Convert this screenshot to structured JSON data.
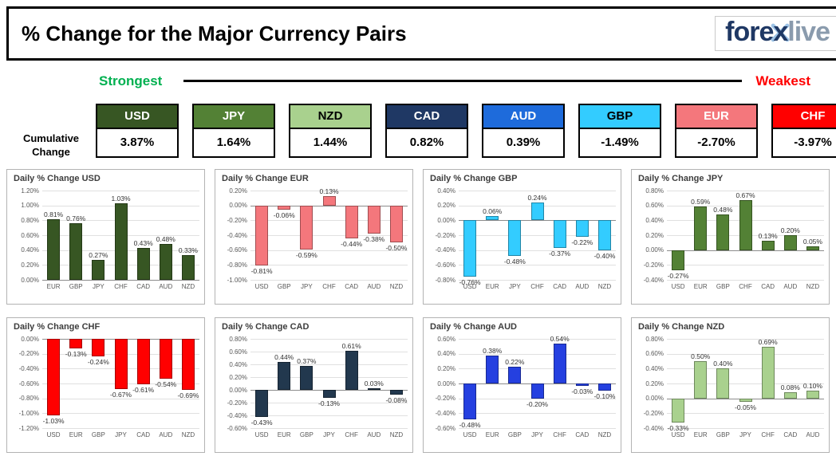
{
  "header": {
    "title": "% Change for the Major Currency Pairs",
    "logo": {
      "fore": "fore",
      "x": "x",
      "live": "live",
      "navy": "#1F3864",
      "gray": "#8A9BAD",
      "light_blue": "#9DC3E6"
    }
  },
  "scale": {
    "strongest": "Strongest",
    "weakest": "Weakest",
    "strongest_color": "#00B050",
    "weakest_color": "#FF0000"
  },
  "cumulative": {
    "label_line1": "Cumulative",
    "label_line2": "Change",
    "items": [
      {
        "code": "USD",
        "value": "3.87%",
        "color": "#375623",
        "text_color": "#FFFFFF"
      },
      {
        "code": "JPY",
        "value": "1.64%",
        "color": "#538135",
        "text_color": "#FFFFFF"
      },
      {
        "code": "NZD",
        "value": "1.44%",
        "color": "#A9D18E",
        "text_color": "#000000"
      },
      {
        "code": "CAD",
        "value": "0.82%",
        "color": "#1F3864",
        "text_color": "#FFFFFF"
      },
      {
        "code": "AUD",
        "value": "0.39%",
        "color": "#1E6BDB",
        "text_color": "#FFFFFF"
      },
      {
        "code": "GBP",
        "value": "-1.49%",
        "color": "#33CCFF",
        "text_color": "#000000"
      },
      {
        "code": "EUR",
        "value": "-2.70%",
        "color": "#F4777C",
        "text_color": "#FFFFFF"
      },
      {
        "code": "CHF",
        "value": "-3.97%",
        "color": "#FF0000",
        "text_color": "#FFFFFF"
      }
    ]
  },
  "chart_data": [
    {
      "id": "USD",
      "type": "bar",
      "title": "Daily % Change USD",
      "color": "#375623",
      "categories": [
        "EUR",
        "GBP",
        "JPY",
        "CHF",
        "CAD",
        "AUD",
        "NZD"
      ],
      "values": [
        0.81,
        0.76,
        0.27,
        1.03,
        0.43,
        0.48,
        0.33
      ],
      "labels": [
        "0.81%",
        "0.76%",
        "0.27%",
        "1.03%",
        "0.43%",
        "0.48%",
        "0.33%"
      ],
      "ylim": [
        0,
        1.2
      ],
      "ytick_step": 0.2,
      "grid": true,
      "legend": false,
      "yticks": [
        "1.20%",
        "1.00%",
        "0.80%",
        "0.60%",
        "0.40%",
        "0.20%",
        "0.00%"
      ]
    },
    {
      "id": "EUR",
      "type": "bar",
      "title": "Daily % Change EUR",
      "color": "#F4777C",
      "categories": [
        "USD",
        "GBP",
        "JPY",
        "CHF",
        "CAD",
        "AUD",
        "NZD"
      ],
      "values": [
        -0.81,
        -0.06,
        -0.59,
        0.13,
        -0.44,
        -0.38,
        -0.5
      ],
      "labels": [
        "-0.81%",
        "-0.06%",
        "-0.59%",
        "0.13%",
        "-0.44%",
        "-0.38%",
        "-0.50%"
      ],
      "ylim": [
        -1.0,
        0.2
      ],
      "ytick_step": 0.2,
      "grid": true,
      "legend": false,
      "yticks": [
        "0.20%",
        "0.00%",
        "-0.20%",
        "-0.40%",
        "-0.60%",
        "-0.80%",
        "-1.00%"
      ]
    },
    {
      "id": "GBP",
      "type": "bar",
      "title": "Daily % Change GBP",
      "color": "#33CCFF",
      "categories": [
        "USD",
        "EUR",
        "JPY",
        "CHF",
        "CAD",
        "AUD",
        "NZD"
      ],
      "values": [
        -0.76,
        0.06,
        -0.48,
        0.24,
        -0.37,
        -0.22,
        -0.4
      ],
      "labels": [
        "-0.76%",
        "0.06%",
        "-0.48%",
        "0.24%",
        "-0.37%",
        "-0.22%",
        "-0.40%"
      ],
      "ylim": [
        -0.8,
        0.4
      ],
      "ytick_step": 0.2,
      "grid": true,
      "legend": false,
      "yticks": [
        "0.40%",
        "0.20%",
        "0.00%",
        "-0.20%",
        "-0.40%",
        "-0.60%",
        "-0.80%"
      ]
    },
    {
      "id": "JPY",
      "type": "bar",
      "title": "Daily % Change JPY",
      "color": "#538135",
      "categories": [
        "USD",
        "EUR",
        "GBP",
        "CHF",
        "CAD",
        "AUD",
        "NZD"
      ],
      "values": [
        -0.27,
        0.59,
        0.48,
        0.67,
        0.13,
        0.2,
        0.05
      ],
      "labels": [
        "-0.27%",
        "0.59%",
        "0.48%",
        "0.67%",
        "0.13%",
        "0.20%",
        "0.05%"
      ],
      "ylim": [
        -0.4,
        0.8
      ],
      "ytick_step": 0.2,
      "grid": true,
      "legend": false,
      "yticks": [
        "0.80%",
        "0.60%",
        "0.40%",
        "0.20%",
        "0.00%",
        "-0.20%",
        "-0.40%"
      ]
    },
    {
      "id": "CHF",
      "type": "bar",
      "title": "Daily % Change CHF",
      "color": "#FF0000",
      "categories": [
        "USD",
        "EUR",
        "GBP",
        "JPY",
        "CAD",
        "AUD",
        "NZD"
      ],
      "values": [
        -1.03,
        -0.13,
        -0.24,
        -0.67,
        -0.61,
        -0.54,
        -0.69
      ],
      "labels": [
        "-1.03%",
        "-0.13%",
        "-0.24%",
        "-0.67%",
        "-0.61%",
        "-0.54%",
        "-0.69%"
      ],
      "ylim": [
        -1.2,
        0
      ],
      "ytick_step": 0.2,
      "grid": true,
      "legend": false,
      "yticks": [
        "0.00%",
        "-0.20%",
        "-0.40%",
        "-0.60%",
        "-0.80%",
        "-1.00%",
        "-1.20%"
      ]
    },
    {
      "id": "CAD",
      "type": "bar",
      "title": "Daily % Change CAD",
      "color": "#22384E",
      "categories": [
        "USD",
        "EUR",
        "GBP",
        "JPY",
        "CHF",
        "AUD",
        "NZD"
      ],
      "values": [
        -0.43,
        0.44,
        0.37,
        -0.13,
        0.61,
        0.03,
        -0.08
      ],
      "labels": [
        "-0.43%",
        "0.44%",
        "0.37%",
        "-0.13%",
        "0.61%",
        "0.03%",
        "-0.08%"
      ],
      "ylim": [
        -0.6,
        0.8
      ],
      "ytick_step": 0.2,
      "grid": true,
      "legend": false,
      "yticks": [
        "0.80%",
        "0.60%",
        "0.40%",
        "0.20%",
        "0.00%",
        "-0.20%",
        "-0.40%",
        "-0.60%"
      ]
    },
    {
      "id": "AUD",
      "type": "bar",
      "title": "Daily % Change AUD",
      "color": "#2540E0",
      "categories": [
        "USD",
        "EUR",
        "GBP",
        "JPY",
        "CHF",
        "CAD",
        "NZD"
      ],
      "values": [
        -0.48,
        0.38,
        0.22,
        -0.2,
        0.54,
        -0.03,
        -0.1
      ],
      "labels": [
        "-0.48%",
        "0.38%",
        "0.22%",
        "-0.20%",
        "0.54%",
        "-0.03%",
        "-0.10%"
      ],
      "ylim": [
        -0.6,
        0.6
      ],
      "ytick_step": 0.2,
      "grid": true,
      "legend": false,
      "yticks": [
        "0.60%",
        "0.40%",
        "0.20%",
        "0.00%",
        "-0.20%",
        "-0.40%",
        "-0.60%"
      ]
    },
    {
      "id": "NZD",
      "type": "bar",
      "title": "Daily % Change NZD",
      "color": "#A9D18E",
      "categories": [
        "USD",
        "EUR",
        "GBP",
        "JPY",
        "CHF",
        "CAD",
        "AUD"
      ],
      "values": [
        -0.33,
        0.5,
        0.4,
        -0.05,
        0.69,
        0.08,
        0.1
      ],
      "labels": [
        "-0.33%",
        "0.50%",
        "0.40%",
        "-0.05%",
        "0.69%",
        "0.08%",
        "0.10%"
      ],
      "ylim": [
        -0.4,
        0.8
      ],
      "ytick_step": 0.2,
      "grid": true,
      "legend": false,
      "yticks": [
        "0.80%",
        "0.60%",
        "0.40%",
        "0.20%",
        "0.00%",
        "-0.20%",
        "-0.40%"
      ]
    }
  ]
}
